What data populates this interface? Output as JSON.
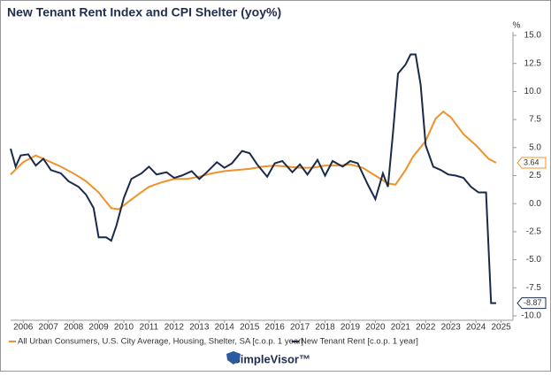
{
  "chart_data": {
    "type": "line",
    "title": "New Tenant Rent Index and CPI Shelter (yoy%)",
    "y_unit": "%",
    "xlim": [
      2006,
      2025.9
    ],
    "xticks": [
      {
        "value": 2006.5,
        "label": "2006"
      },
      {
        "value": 2007.5,
        "label": "2007"
      },
      {
        "value": 2008.5,
        "label": "2008"
      },
      {
        "value": 2009.5,
        "label": "2009"
      },
      {
        "value": 2010.5,
        "label": "2010"
      },
      {
        "value": 2011.5,
        "label": "2011"
      },
      {
        "value": 2012.5,
        "label": "2012"
      },
      {
        "value": 2013.5,
        "label": "2013"
      },
      {
        "value": 2014.5,
        "label": "2014"
      },
      {
        "value": 2015.5,
        "label": "2015"
      },
      {
        "value": 2016.5,
        "label": "2016"
      },
      {
        "value": 2017.5,
        "label": "2017"
      },
      {
        "value": 2018.5,
        "label": "2018"
      },
      {
        "value": 2019.5,
        "label": "2019"
      },
      {
        "value": 2020.5,
        "label": "2020"
      },
      {
        "value": 2021.5,
        "label": "2021"
      },
      {
        "value": 2022.5,
        "label": "2022"
      },
      {
        "value": 2023.5,
        "label": "2023"
      },
      {
        "value": 2024.5,
        "label": "2024"
      },
      {
        "value": 2025.5,
        "label": "2025"
      }
    ],
    "ylim": [
      -10,
      15
    ],
    "yticks": [
      {
        "value": 15,
        "label": "15.0"
      },
      {
        "value": 12.5,
        "label": "12.5"
      },
      {
        "value": 10,
        "label": "10.0"
      },
      {
        "value": 7.5,
        "label": "7.5"
      },
      {
        "value": 5,
        "label": "5.0"
      },
      {
        "value": 2.5,
        "label": "2.5"
      },
      {
        "value": 0,
        "label": "0.0"
      },
      {
        "value": -2.5,
        "label": "-2.5"
      },
      {
        "value": -5,
        "label": "-5.0"
      },
      {
        "value": -7.5,
        "label": "-7.5"
      },
      {
        "value": -10,
        "label": "-10.0"
      }
    ],
    "grid": false,
    "series": [
      {
        "name": "All Urban Consumers, U.S. City Average, Housing, Shelter, SA [c.o.p. 1 year]",
        "color": "#f0922b",
        "x": [
          2006.0,
          2006.5,
          2007.0,
          2007.5,
          2008.0,
          2008.5,
          2009.0,
          2009.5,
          2010.0,
          2010.3,
          2010.7,
          2011.0,
          2011.5,
          2012.0,
          2012.5,
          2013.0,
          2013.5,
          2014.0,
          2014.5,
          2015.0,
          2015.5,
          2016.0,
          2016.5,
          2017.0,
          2017.5,
          2018.0,
          2018.5,
          2019.0,
          2019.5,
          2020.0,
          2020.5,
          2021.0,
          2021.3,
          2021.7,
          2022.0,
          2022.5,
          2022.9,
          2023.2,
          2023.5,
          2024.0,
          2024.5,
          2025.0,
          2025.3
        ],
        "values": [
          2.6,
          3.7,
          4.3,
          3.8,
          3.3,
          2.7,
          2.0,
          1.0,
          -0.4,
          -0.5,
          0.2,
          0.7,
          1.5,
          1.9,
          2.2,
          2.2,
          2.4,
          2.7,
          2.9,
          3.0,
          3.1,
          3.3,
          3.4,
          3.3,
          3.2,
          3.2,
          3.4,
          3.4,
          3.5,
          3.2,
          2.5,
          1.8,
          1.7,
          3.0,
          4.2,
          5.6,
          7.6,
          8.2,
          7.7,
          6.2,
          5.2,
          4.0,
          3.64
        ]
      },
      {
        "name": "New Tenant Rent [c.o.p. 1 year]",
        "color": "#1b2a4a",
        "x": [
          2006.0,
          2006.2,
          2006.4,
          2006.7,
          2007.0,
          2007.3,
          2007.6,
          2008.0,
          2008.3,
          2008.7,
          2009.0,
          2009.3,
          2009.5,
          2009.8,
          2010.0,
          2010.2,
          2010.5,
          2010.8,
          2011.2,
          2011.5,
          2011.8,
          2012.2,
          2012.5,
          2012.8,
          2013.2,
          2013.5,
          2013.8,
          2014.2,
          2014.5,
          2014.8,
          2015.2,
          2015.5,
          2015.8,
          2016.2,
          2016.5,
          2016.8,
          2017.2,
          2017.5,
          2017.8,
          2018.2,
          2018.5,
          2018.8,
          2019.2,
          2019.5,
          2019.8,
          2020.2,
          2020.5,
          2020.8,
          2021.0,
          2021.2,
          2021.4,
          2021.7,
          2021.9,
          2022.1,
          2022.3,
          2022.5,
          2022.8,
          2023.1,
          2023.4,
          2023.7,
          2024.0,
          2024.3,
          2024.6,
          2024.9,
          2025.1,
          2025.3
        ],
        "values": [
          4.9,
          3.3,
          4.3,
          4.4,
          3.4,
          4.0,
          3.0,
          2.7,
          2.0,
          1.5,
          0.8,
          -0.4,
          -3.0,
          -3.0,
          -3.3,
          -2.0,
          0.5,
          2.2,
          2.7,
          3.3,
          2.6,
          2.8,
          2.3,
          2.5,
          2.9,
          2.2,
          2.8,
          3.7,
          3.2,
          3.6,
          4.7,
          4.5,
          3.5,
          2.4,
          3.6,
          3.8,
          2.8,
          3.5,
          2.6,
          3.9,
          2.5,
          3.8,
          3.3,
          3.8,
          3.6,
          1.7,
          0.4,
          2.7,
          1.5,
          6.3,
          11.6,
          12.4,
          13.3,
          13.3,
          10.6,
          5.2,
          3.3,
          3.0,
          2.6,
          2.5,
          2.3,
          1.5,
          1.0,
          1.0,
          -8.87,
          -8.87
        ]
      }
    ]
  },
  "logo": "SimpleVisor™"
}
